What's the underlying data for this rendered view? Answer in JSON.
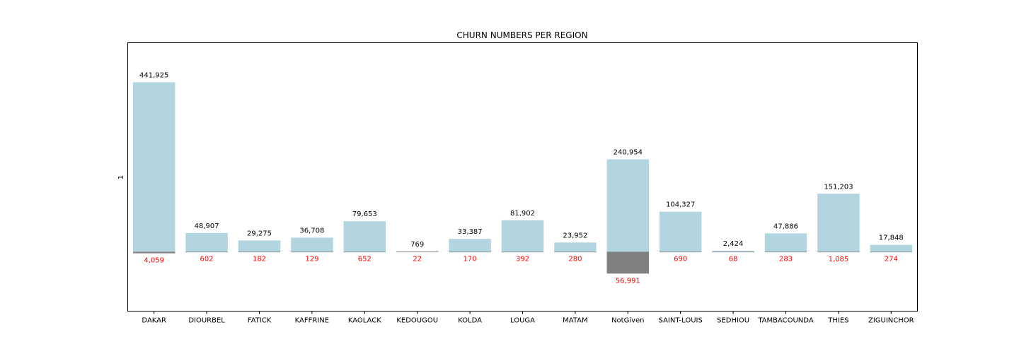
{
  "chart_data": {
    "type": "bar",
    "title": "CHURN NUMBERS PER REGION",
    "ylabel": "1",
    "xlabel": "",
    "categories": [
      "DAKAR",
      "DIOURBEL",
      "FATICK",
      "KAFFRINE",
      "KAOLACK",
      "KEDOUGOU",
      "KOLDA",
      "LOUGA",
      "MATAM",
      "NotGiven",
      "SAINT-LOUIS",
      "SEDHIOU",
      "TAMBACOUNDA",
      "THIES",
      "ZIGUINCHOR"
    ],
    "series": [
      {
        "values": [
          441925,
          48907,
          29275,
          36708,
          79653,
          769,
          33387,
          81902,
          23952,
          240954,
          104327,
          2424,
          47886,
          151203,
          17848
        ],
        "labels": [
          "441,925",
          "48,907",
          "29,275",
          "36,708",
          "79,653",
          "769",
          "33,387",
          "81,902",
          "23,952",
          "240,954",
          "104,327",
          "2,424",
          "47,886",
          "151,203",
          "17,848"
        ],
        "color": "#b3d5df",
        "label_color": "#000000",
        "direction": "up"
      },
      {
        "values": [
          4059,
          602,
          182,
          129,
          652,
          22,
          170,
          392,
          280,
          56991,
          690,
          68,
          283,
          1085,
          274
        ],
        "labels": [
          "4,059",
          "602",
          "182",
          "129",
          "652",
          "22",
          "170",
          "392",
          "280",
          "56,991",
          "690",
          "68",
          "283",
          "1,085",
          "274"
        ],
        "color": "#808080",
        "label_color": "#ff0000",
        "direction": "down"
      }
    ],
    "ylim": [
      -155000,
      545000
    ],
    "grid": false,
    "legend": "none",
    "y_ticks_visible": false
  }
}
